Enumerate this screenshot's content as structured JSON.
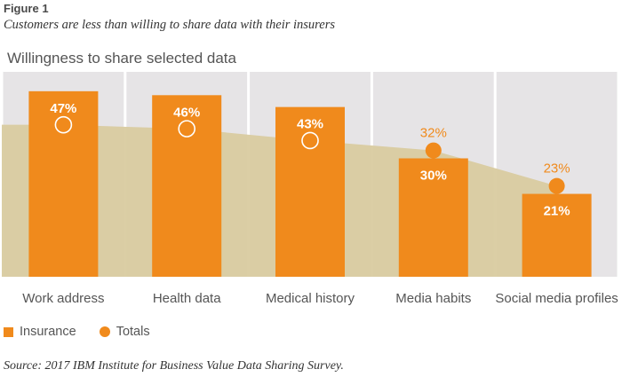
{
  "figure_label": "Figure 1",
  "caption": "Customers are less than willing to share data with their insurers",
  "source": "Source: 2017 IBM Institute for Business Value Data Sharing Survey.",
  "colors": {
    "insurance": "#f08a1c",
    "totals": "#f08a1c",
    "totals_area": "#d9cba0",
    "panel_bg": "#e6e4e6",
    "label_on_bar": "#ffffff",
    "axis_text": "#555555"
  },
  "legend": [
    {
      "label": "Insurance",
      "shape": "square"
    },
    {
      "label": "Totals",
      "shape": "circle"
    }
  ],
  "chart_data": {
    "type": "bar",
    "title": "Willingness to share selected data",
    "categories": [
      "Work address",
      "Health data",
      "Medical history",
      "Media habits",
      "Social media profiles"
    ],
    "series": [
      {
        "name": "Insurance",
        "type": "bar",
        "values": [
          47,
          46,
          43,
          30,
          21
        ],
        "labels": [
          "47%",
          "46%",
          "43%",
          "30%",
          "21%"
        ]
      },
      {
        "name": "Totals",
        "type": "area+marker",
        "values": [
          null,
          null,
          null,
          32,
          23
        ],
        "labels": [
          "",
          "",
          "",
          "32%",
          "23%"
        ]
      }
    ],
    "ylim": [
      0,
      50
    ],
    "grid": false,
    "legend_position": "bottom-left"
  }
}
